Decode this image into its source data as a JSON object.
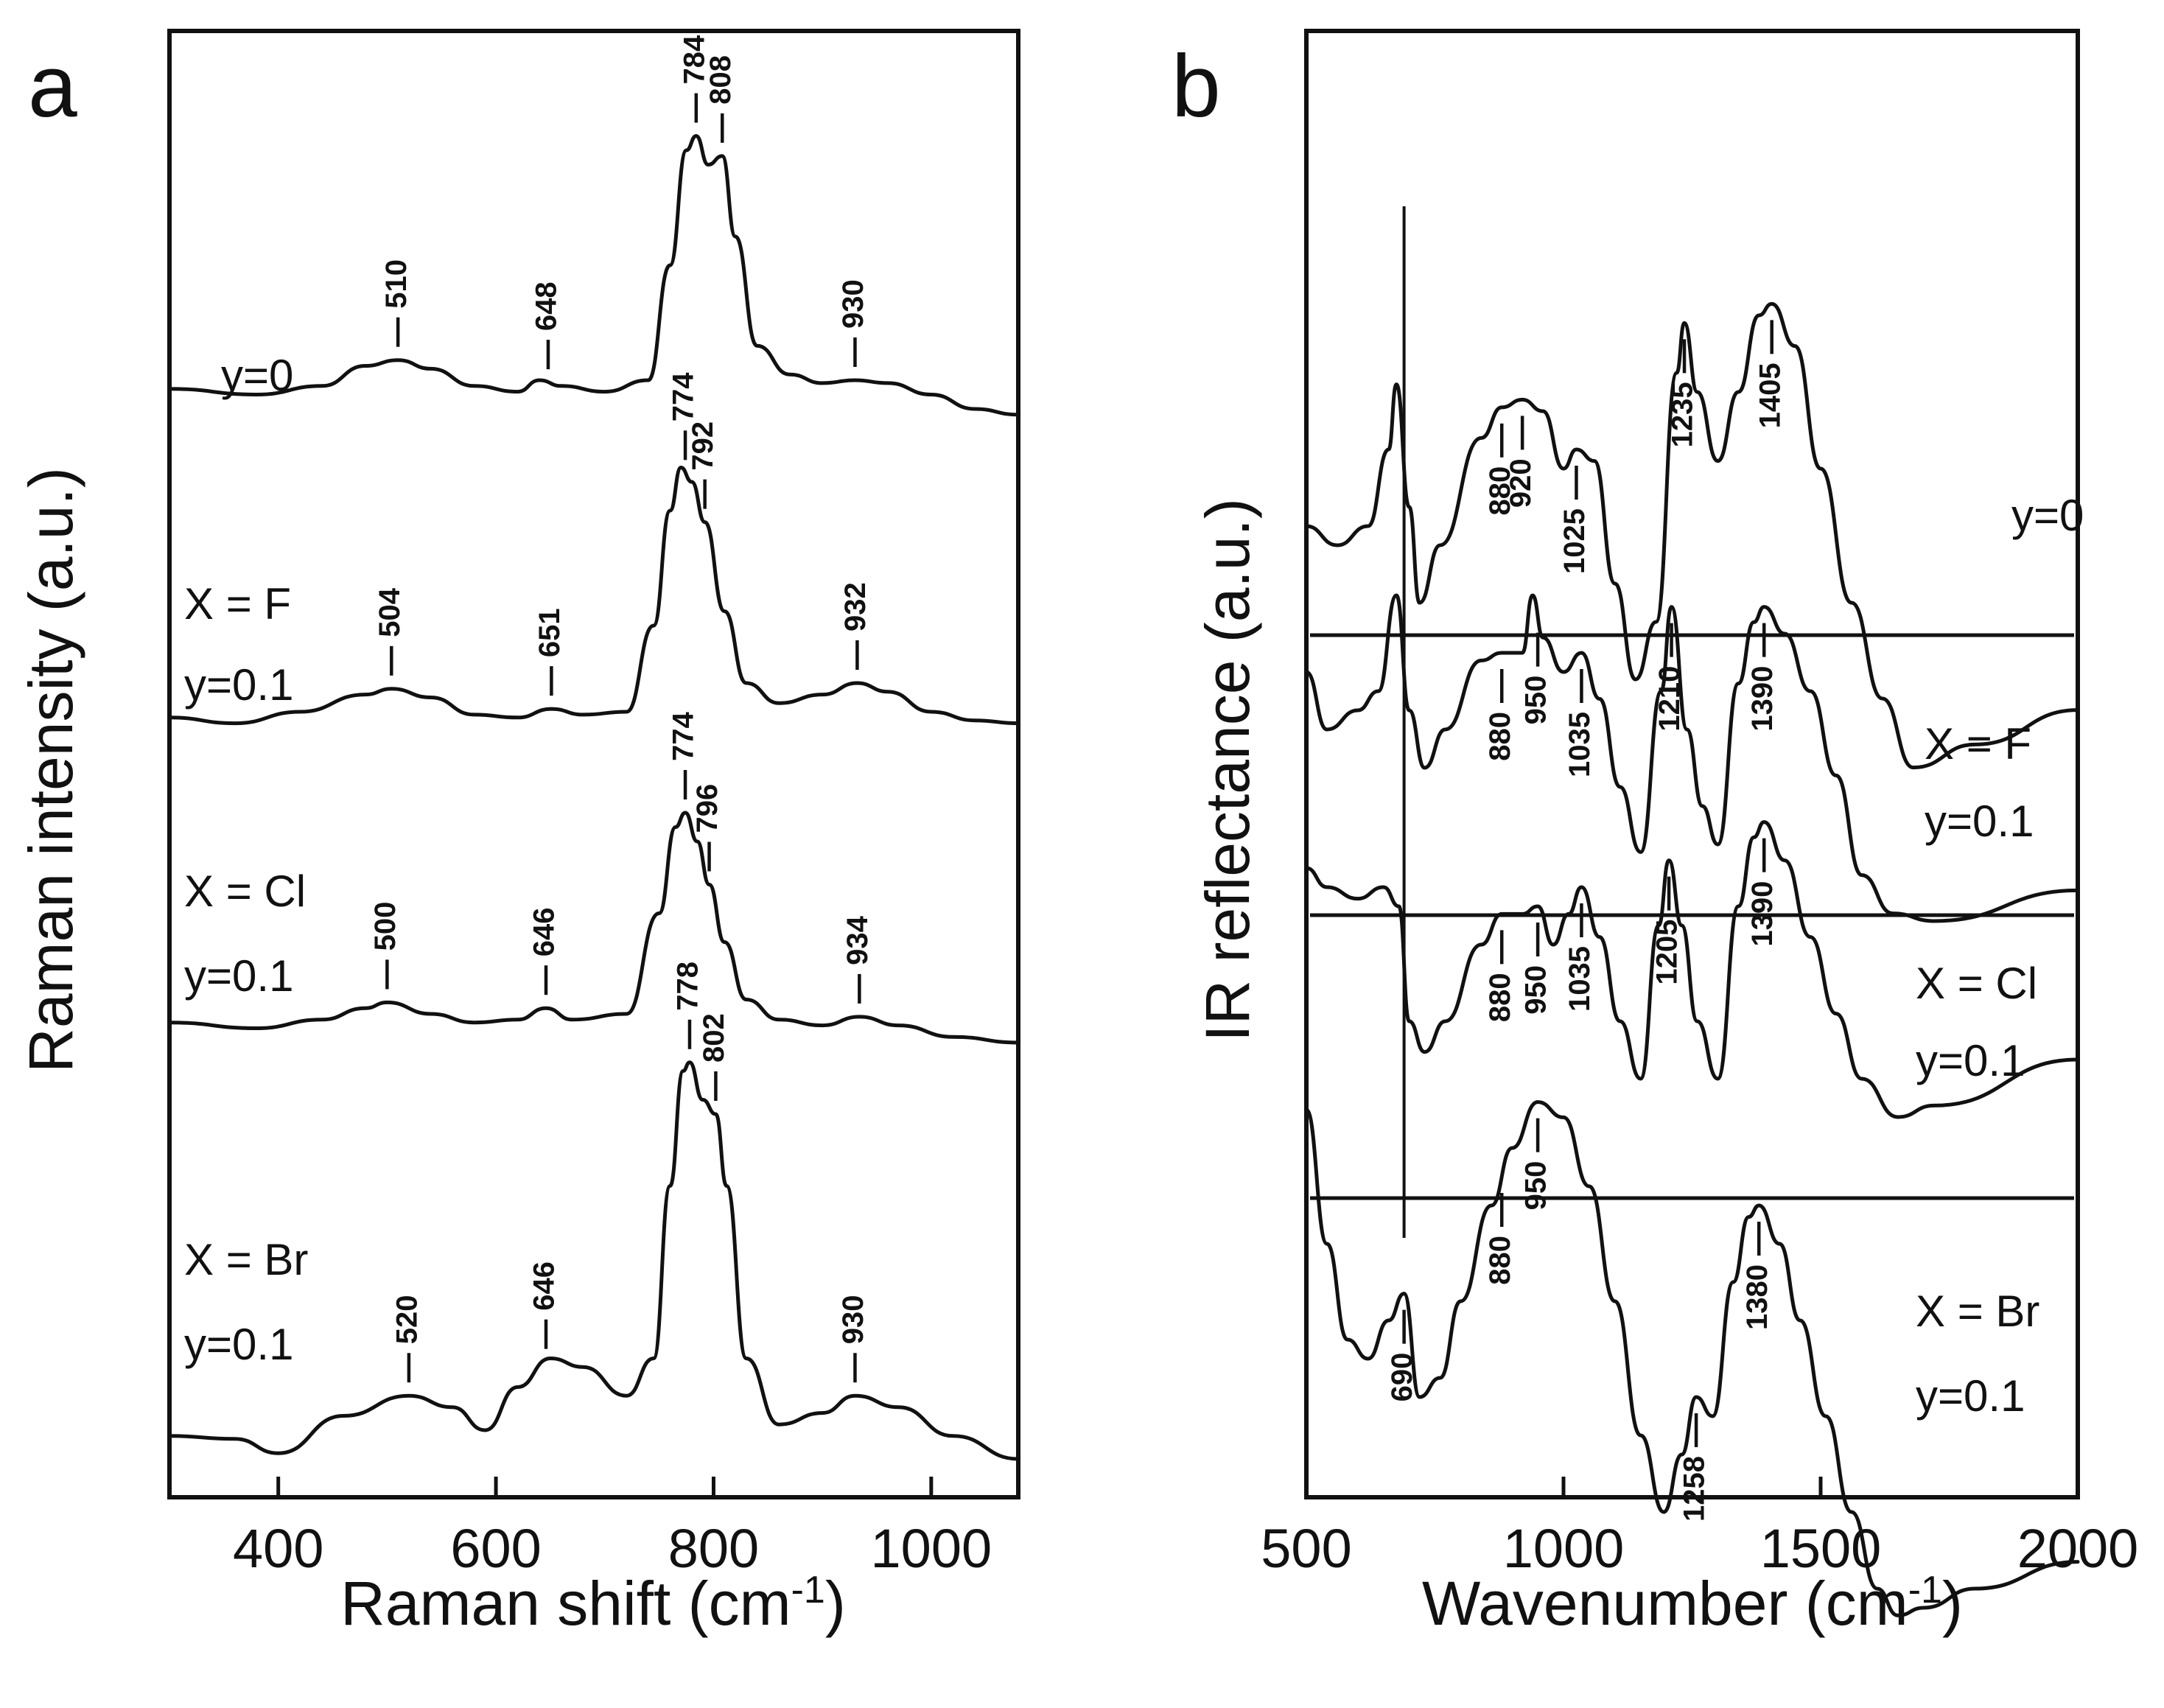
{
  "chart_data": [
    {
      "panel": "a",
      "type": "line",
      "xlabel": "Raman shift (cm-1)",
      "ylabel": "Raman intensity (a.u.)",
      "xlim": [
        300,
        1080
      ],
      "xticks": [
        400,
        600,
        800,
        1000
      ],
      "series": [
        {
          "labels": [
            "y=0"
          ],
          "peaks": [
            510,
            648,
            784,
            808,
            930
          ],
          "points": [
            [
              300,
              0.07
            ],
            [
              380,
              0.05
            ],
            [
              440,
              0.08
            ],
            [
              480,
              0.15
            ],
            [
              510,
              0.17
            ],
            [
              540,
              0.14
            ],
            [
              580,
              0.08
            ],
            [
              620,
              0.06
            ],
            [
              640,
              0.1
            ],
            [
              660,
              0.08
            ],
            [
              700,
              0.06
            ],
            [
              740,
              0.1
            ],
            [
              760,
              0.5
            ],
            [
              775,
              0.9
            ],
            [
              784,
              0.95
            ],
            [
              795,
              0.85
            ],
            [
              808,
              0.88
            ],
            [
              820,
              0.6
            ],
            [
              840,
              0.22
            ],
            [
              870,
              0.12
            ],
            [
              900,
              0.09
            ],
            [
              930,
              0.1
            ],
            [
              960,
              0.09
            ],
            [
              1000,
              0.05
            ],
            [
              1040,
              0.0
            ],
            [
              1080,
              -0.02
            ]
          ]
        },
        {
          "labels": [
            "X = F",
            "y=0.1"
          ],
          "peaks": [
            504,
            651,
            774,
            792,
            932
          ],
          "points": [
            [
              300,
              0.08
            ],
            [
              360,
              0.06
            ],
            [
              420,
              0.1
            ],
            [
              480,
              0.16
            ],
            [
              504,
              0.18
            ],
            [
              540,
              0.15
            ],
            [
              580,
              0.09
            ],
            [
              620,
              0.08
            ],
            [
              651,
              0.11
            ],
            [
              680,
              0.09
            ],
            [
              720,
              0.1
            ],
            [
              745,
              0.4
            ],
            [
              760,
              0.8
            ],
            [
              770,
              0.95
            ],
            [
              780,
              0.9
            ],
            [
              792,
              0.76
            ],
            [
              810,
              0.45
            ],
            [
              830,
              0.2
            ],
            [
              860,
              0.13
            ],
            [
              900,
              0.16
            ],
            [
              932,
              0.2
            ],
            [
              960,
              0.17
            ],
            [
              1000,
              0.1
            ],
            [
              1040,
              0.07
            ],
            [
              1080,
              0.06
            ]
          ]
        },
        {
          "labels": [
            "X = Cl",
            "y=0.1"
          ],
          "peaks": [
            500,
            646,
            774,
            796,
            934
          ],
          "points": [
            [
              300,
              0.07
            ],
            [
              380,
              0.05
            ],
            [
              440,
              0.08
            ],
            [
              480,
              0.12
            ],
            [
              500,
              0.14
            ],
            [
              540,
              0.1
            ],
            [
              580,
              0.07
            ],
            [
              620,
              0.08
            ],
            [
              646,
              0.12
            ],
            [
              670,
              0.08
            ],
            [
              720,
              0.1
            ],
            [
              750,
              0.45
            ],
            [
              765,
              0.75
            ],
            [
              774,
              0.8
            ],
            [
              785,
              0.7
            ],
            [
              796,
              0.55
            ],
            [
              810,
              0.35
            ],
            [
              830,
              0.15
            ],
            [
              860,
              0.08
            ],
            [
              900,
              0.06
            ],
            [
              934,
              0.09
            ],
            [
              970,
              0.06
            ],
            [
              1020,
              0.02
            ],
            [
              1080,
              0.0
            ]
          ]
        },
        {
          "labels": [
            "X = Br",
            "y=0.1"
          ],
          "peaks": [
            520,
            646,
            778,
            802,
            930
          ],
          "points": [
            [
              300,
              0.08
            ],
            [
              360,
              0.07
            ],
            [
              400,
              0.02
            ],
            [
              460,
              0.15
            ],
            [
              520,
              0.22
            ],
            [
              560,
              0.18
            ],
            [
              590,
              0.1
            ],
            [
              620,
              0.25
            ],
            [
              650,
              0.35
            ],
            [
              680,
              0.32
            ],
            [
              720,
              0.22
            ],
            [
              745,
              0.35
            ],
            [
              760,
              0.95
            ],
            [
              772,
              1.35
            ],
            [
              778,
              1.38
            ],
            [
              790,
              1.25
            ],
            [
              802,
              1.2
            ],
            [
              812,
              0.95
            ],
            [
              830,
              0.35
            ],
            [
              860,
              0.12
            ],
            [
              900,
              0.16
            ],
            [
              930,
              0.22
            ],
            [
              970,
              0.18
            ],
            [
              1020,
              0.08
            ],
            [
              1080,
              0.0
            ]
          ]
        }
      ]
    },
    {
      "panel": "b",
      "type": "line",
      "xlabel": "Wavenumber (cm-1)",
      "ylabel": "IR reflectance (a.u.)",
      "xlim": [
        500,
        2000
      ],
      "xticks": [
        500,
        1000,
        1500,
        2000
      ],
      "guide_line": 690,
      "series": [
        {
          "labels": [
            "y=0"
          ],
          "peaks": [
            880,
            920,
            1025,
            1235,
            1405
          ],
          "points": [
            [
              500,
              0.55
            ],
            [
              560,
              0.5
            ],
            [
              620,
              0.55
            ],
            [
              660,
              0.75
            ],
            [
              675,
              0.92
            ],
            [
              700,
              0.6
            ],
            [
              720,
              0.35
            ],
            [
              760,
              0.5
            ],
            [
              840,
              0.78
            ],
            [
              880,
              0.86
            ],
            [
              920,
              0.88
            ],
            [
              960,
              0.85
            ],
            [
              1000,
              0.7
            ],
            [
              1025,
              0.75
            ],
            [
              1060,
              0.72
            ],
            [
              1100,
              0.4
            ],
            [
              1140,
              0.15
            ],
            [
              1180,
              0.3
            ],
            [
              1220,
              0.95
            ],
            [
              1235,
              1.08
            ],
            [
              1260,
              0.9
            ],
            [
              1300,
              0.72
            ],
            [
              1340,
              0.9
            ],
            [
              1380,
              1.1
            ],
            [
              1405,
              1.13
            ],
            [
              1450,
              1.02
            ],
            [
              1500,
              0.7
            ],
            [
              1560,
              0.35
            ],
            [
              1620,
              0.1
            ],
            [
              1680,
              -0.08
            ],
            [
              1800,
              -0.02
            ],
            [
              2000,
              0.07
            ]
          ]
        },
        {
          "labels": [
            "X = F",
            "y=0.1"
          ],
          "peaks": [
            880,
            950,
            1035,
            1210,
            1390
          ],
          "points": [
            [
              500,
              0.65
            ],
            [
              540,
              0.5
            ],
            [
              600,
              0.55
            ],
            [
              640,
              0.6
            ],
            [
              675,
              0.85
            ],
            [
              700,
              0.55
            ],
            [
              730,
              0.4
            ],
            [
              770,
              0.5
            ],
            [
              840,
              0.68
            ],
            [
              880,
              0.7
            ],
            [
              920,
              0.7
            ],
            [
              940,
              0.85
            ],
            [
              960,
              0.74
            ],
            [
              1000,
              0.65
            ],
            [
              1035,
              0.7
            ],
            [
              1070,
              0.58
            ],
            [
              1110,
              0.35
            ],
            [
              1150,
              0.18
            ],
            [
              1190,
              0.6
            ],
            [
              1210,
              0.82
            ],
            [
              1240,
              0.5
            ],
            [
              1270,
              0.3
            ],
            [
              1300,
              0.2
            ],
            [
              1340,
              0.62
            ],
            [
              1370,
              0.78
            ],
            [
              1390,
              0.82
            ],
            [
              1430,
              0.75
            ],
            [
              1480,
              0.6
            ],
            [
              1530,
              0.38
            ],
            [
              1580,
              0.12
            ],
            [
              1640,
              0.02
            ],
            [
              1720,
              0.0
            ],
            [
              2000,
              0.08
            ]
          ]
        },
        {
          "labels": [
            "X = Cl",
            "y=0.1"
          ],
          "peaks": [
            880,
            950,
            1035,
            1205,
            1390
          ],
          "points": [
            [
              500,
              0.6
            ],
            [
              540,
              0.55
            ],
            [
              600,
              0.52
            ],
            [
              650,
              0.55
            ],
            [
              680,
              0.5
            ],
            [
              700,
              0.2
            ],
            [
              730,
              0.12
            ],
            [
              770,
              0.2
            ],
            [
              840,
              0.4
            ],
            [
              880,
              0.48
            ],
            [
              920,
              0.48
            ],
            [
              950,
              0.5
            ],
            [
              980,
              0.4
            ],
            [
              1010,
              0.48
            ],
            [
              1035,
              0.55
            ],
            [
              1070,
              0.42
            ],
            [
              1110,
              0.2
            ],
            [
              1150,
              0.05
            ],
            [
              1185,
              0.45
            ],
            [
              1205,
              0.62
            ],
            [
              1230,
              0.45
            ],
            [
              1260,
              0.2
            ],
            [
              1300,
              0.05
            ],
            [
              1340,
              0.5
            ],
            [
              1370,
              0.68
            ],
            [
              1390,
              0.72
            ],
            [
              1430,
              0.62
            ],
            [
              1480,
              0.42
            ],
            [
              1530,
              0.22
            ],
            [
              1580,
              0.05
            ],
            [
              1650,
              -0.05
            ],
            [
              1720,
              -0.02
            ],
            [
              2000,
              0.1
            ]
          ]
        },
        {
          "labels": [
            "X = Br",
            "y=0.1"
          ],
          "peaks": [
            690,
            880,
            950,
            1258,
            1380
          ],
          "points": [
            [
              500,
              0.7
            ],
            [
              540,
              0.35
            ],
            [
              580,
              0.1
            ],
            [
              620,
              0.05
            ],
            [
              660,
              0.15
            ],
            [
              690,
              0.22
            ],
            [
              720,
              -0.05
            ],
            [
              760,
              0.0
            ],
            [
              800,
              0.2
            ],
            [
              860,
              0.45
            ],
            [
              900,
              0.6
            ],
            [
              950,
              0.72
            ],
            [
              1000,
              0.68
            ],
            [
              1050,
              0.5
            ],
            [
              1100,
              0.2
            ],
            [
              1150,
              -0.15
            ],
            [
              1195,
              -0.35
            ],
            [
              1230,
              -0.2
            ],
            [
              1258,
              -0.05
            ],
            [
              1290,
              -0.1
            ],
            [
              1330,
              0.25
            ],
            [
              1360,
              0.42
            ],
            [
              1380,
              0.45
            ],
            [
              1420,
              0.35
            ],
            [
              1460,
              0.15
            ],
            [
              1510,
              -0.1
            ],
            [
              1560,
              -0.35
            ],
            [
              1610,
              -0.55
            ],
            [
              1650,
              -0.62
            ],
            [
              1700,
              -0.6
            ],
            [
              1800,
              -0.55
            ],
            [
              2000,
              -0.48
            ]
          ]
        }
      ]
    }
  ]
}
